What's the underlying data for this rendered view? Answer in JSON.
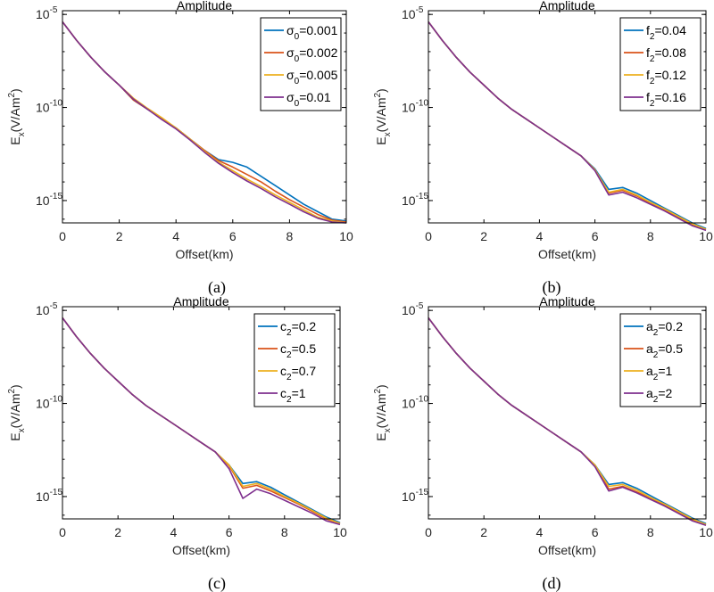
{
  "colors": {
    "s1": "#0072bd",
    "s2": "#d95319",
    "s3": "#edb120",
    "s4": "#7e2f8e"
  },
  "chart_data": [
    {
      "panel": "a",
      "caption": "(a)",
      "type": "line",
      "title": "Amplitude",
      "xlabel": "Offset(km)",
      "ylabel": "E_x(V/Am^2)",
      "yscale": "log",
      "xlim": [
        0,
        10
      ],
      "ylim_exp": [
        -16.2,
        -4.8
      ],
      "xticks": [
        "0",
        "2",
        "4",
        "6",
        "8",
        "10"
      ],
      "yticks": [
        {
          "base": "10",
          "exp": "-5",
          "value": -5
        },
        {
          "base": "10",
          "exp": "-10",
          "value": -10
        },
        {
          "base": "10",
          "exp": "-15",
          "value": -15
        }
      ],
      "legend_position": "top-right",
      "legend_symbol": "σ",
      "legend_sub": "0",
      "x": [
        0,
        0.5,
        1,
        1.5,
        2,
        2.5,
        3,
        3.5,
        4,
        4.5,
        5,
        5.5,
        6,
        6.5,
        7,
        7.5,
        8,
        8.5,
        9,
        9.5,
        10
      ],
      "series": [
        {
          "name": "σ0=0.001",
          "legend_value": "=0.001",
          "values": [
            -5.4,
            -6.4,
            -7.3,
            -8.1,
            -8.8,
            -9.6,
            -10.1,
            -10.6,
            -11.1,
            -11.7,
            -12.3,
            -12.8,
            -12.95,
            -13.2,
            -13.7,
            -14.2,
            -14.7,
            -15.2,
            -15.6,
            -16.0,
            -16.1
          ]
        },
        {
          "name": "σ0=0.002",
          "legend_value": "=0.002",
          "values": [
            -5.4,
            -6.4,
            -7.3,
            -8.1,
            -8.8,
            -9.6,
            -10.1,
            -10.6,
            -11.1,
            -11.7,
            -12.3,
            -12.85,
            -13.2,
            -13.6,
            -14.0,
            -14.5,
            -14.95,
            -15.35,
            -15.75,
            -16.05,
            -16.15
          ]
        },
        {
          "name": "σ0=0.005",
          "legend_value": "=0.005",
          "values": [
            -5.4,
            -6.4,
            -7.3,
            -8.1,
            -8.8,
            -9.5,
            -10.05,
            -10.55,
            -11.1,
            -11.7,
            -12.35,
            -12.95,
            -13.4,
            -13.85,
            -14.25,
            -14.7,
            -15.1,
            -15.5,
            -15.9,
            -16.1,
            -16.2
          ]
        },
        {
          "name": "σ0=0.01",
          "legend_value": "=0.01",
          "values": [
            -5.4,
            -6.4,
            -7.3,
            -8.1,
            -8.8,
            -9.55,
            -10.1,
            -10.65,
            -11.15,
            -11.75,
            -12.4,
            -13.0,
            -13.5,
            -13.95,
            -14.35,
            -14.8,
            -15.2,
            -15.6,
            -15.95,
            -16.15,
            -16.2
          ]
        }
      ]
    },
    {
      "panel": "b",
      "caption": "(b)",
      "type": "line",
      "title": "Amplitude",
      "xlabel": "Offset(km)",
      "ylabel": "E_x(V/Am^2)",
      "yscale": "log",
      "xlim": [
        0,
        10
      ],
      "ylim_exp": [
        -16.2,
        -4.8
      ],
      "xticks": [
        "0",
        "2",
        "4",
        "6",
        "8",
        "10"
      ],
      "yticks": [
        {
          "base": "10",
          "exp": "-5",
          "value": -5
        },
        {
          "base": "10",
          "exp": "-10",
          "value": -10
        },
        {
          "base": "10",
          "exp": "-15",
          "value": -15
        }
      ],
      "legend_position": "top-right",
      "legend_symbol": "f",
      "legend_sub": "2",
      "x": [
        0,
        0.5,
        1,
        1.5,
        2,
        2.5,
        3,
        3.5,
        4,
        4.5,
        5,
        5.5,
        6,
        6.5,
        7,
        7.5,
        8,
        8.5,
        9,
        9.5,
        10
      ],
      "series": [
        {
          "name": "f2=0.04",
          "legend_value": "=0.04",
          "values": [
            -5.4,
            -6.4,
            -7.3,
            -8.1,
            -8.8,
            -9.5,
            -10.1,
            -10.6,
            -11.1,
            -11.6,
            -12.1,
            -12.6,
            -13.3,
            -14.4,
            -14.3,
            -14.6,
            -15.0,
            -15.4,
            -15.8,
            -16.2,
            -16.5
          ]
        },
        {
          "name": "f2=0.08",
          "legend_value": "=0.08",
          "values": [
            -5.4,
            -6.4,
            -7.3,
            -8.1,
            -8.8,
            -9.5,
            -10.1,
            -10.6,
            -11.1,
            -11.6,
            -12.1,
            -12.6,
            -13.35,
            -14.6,
            -14.45,
            -14.75,
            -15.15,
            -15.5,
            -15.9,
            -16.3,
            -16.55
          ]
        },
        {
          "name": "f2=0.12",
          "legend_value": "=0.12",
          "values": [
            -5.4,
            -6.4,
            -7.3,
            -8.1,
            -8.8,
            -9.5,
            -10.1,
            -10.6,
            -11.1,
            -11.6,
            -12.1,
            -12.6,
            -13.35,
            -14.55,
            -14.4,
            -14.7,
            -15.1,
            -15.45,
            -15.85,
            -16.25,
            -16.55
          ]
        },
        {
          "name": "f2=0.16",
          "legend_value": "=0.16",
          "values": [
            -5.4,
            -6.4,
            -7.3,
            -8.1,
            -8.8,
            -9.5,
            -10.1,
            -10.6,
            -11.1,
            -11.6,
            -12.1,
            -12.6,
            -13.4,
            -14.7,
            -14.55,
            -14.85,
            -15.2,
            -15.55,
            -15.95,
            -16.35,
            -16.6
          ]
        }
      ]
    },
    {
      "panel": "c",
      "caption": "(c)",
      "type": "line",
      "title": "Amplitude",
      "xlabel": "Offset(km)",
      "ylabel": "E_x(V/Am^2)",
      "yscale": "log",
      "xlim": [
        0,
        10
      ],
      "ylim_exp": [
        -16.2,
        -4.8
      ],
      "xticks": [
        "0",
        "2",
        "4",
        "6",
        "8",
        "10"
      ],
      "yticks": [
        {
          "base": "10",
          "exp": "-5",
          "value": -5
        },
        {
          "base": "10",
          "exp": "-10",
          "value": -10
        },
        {
          "base": "10",
          "exp": "-15",
          "value": -15
        }
      ],
      "legend_position": "top-right",
      "legend_symbol": "c",
      "legend_sub": "2",
      "x": [
        0,
        0.5,
        1,
        1.5,
        2,
        2.5,
        3,
        3.5,
        4,
        4.5,
        5,
        5.5,
        6,
        6.5,
        7,
        7.5,
        8,
        8.5,
        9,
        9.5,
        10
      ],
      "series": [
        {
          "name": "c2=0.2",
          "legend_value": "=0.2",
          "values": [
            -5.4,
            -6.4,
            -7.3,
            -8.1,
            -8.8,
            -9.5,
            -10.1,
            -10.6,
            -11.1,
            -11.6,
            -12.1,
            -12.6,
            -13.3,
            -14.3,
            -14.2,
            -14.5,
            -14.9,
            -15.3,
            -15.7,
            -16.1,
            -16.4
          ]
        },
        {
          "name": "c2=0.5",
          "legend_value": "=0.5",
          "values": [
            -5.4,
            -6.4,
            -7.3,
            -8.1,
            -8.8,
            -9.5,
            -10.1,
            -10.6,
            -11.1,
            -11.6,
            -12.1,
            -12.6,
            -13.35,
            -14.55,
            -14.4,
            -14.7,
            -15.05,
            -15.4,
            -15.8,
            -16.2,
            -16.45
          ]
        },
        {
          "name": "c2=0.7",
          "legend_value": "=0.7",
          "values": [
            -5.4,
            -6.4,
            -7.3,
            -8.1,
            -8.8,
            -9.5,
            -10.1,
            -10.6,
            -11.1,
            -11.6,
            -12.1,
            -12.6,
            -13.3,
            -14.45,
            -14.3,
            -14.6,
            -15.0,
            -15.35,
            -15.75,
            -16.15,
            -16.45
          ]
        },
        {
          "name": "c2=1",
          "legend_value": "=1",
          "values": [
            -5.4,
            -6.4,
            -7.3,
            -8.1,
            -8.8,
            -9.5,
            -10.1,
            -10.6,
            -11.1,
            -11.6,
            -12.1,
            -12.6,
            -13.5,
            -15.1,
            -14.6,
            -14.85,
            -15.2,
            -15.55,
            -15.9,
            -16.3,
            -16.5
          ]
        }
      ]
    },
    {
      "panel": "d",
      "caption": "(d)",
      "type": "line",
      "title": "Amplitude",
      "xlabel": "Offset(km)",
      "ylabel": "E_x(V/Am^2)",
      "yscale": "log",
      "xlim": [
        0,
        10
      ],
      "ylim_exp": [
        -16.2,
        -4.8
      ],
      "xticks": [
        "0",
        "2",
        "4",
        "6",
        "8",
        "10"
      ],
      "yticks": [
        {
          "base": "10",
          "exp": "-5",
          "value": -5
        },
        {
          "base": "10",
          "exp": "-10",
          "value": -10
        },
        {
          "base": "10",
          "exp": "-15",
          "value": -15
        }
      ],
      "legend_position": "top-right",
      "legend_symbol": "a",
      "legend_sub": "2",
      "x": [
        0,
        0.5,
        1,
        1.5,
        2,
        2.5,
        3,
        3.5,
        4,
        4.5,
        5,
        5.5,
        6,
        6.5,
        7,
        7.5,
        8,
        8.5,
        9,
        9.5,
        10
      ],
      "series": [
        {
          "name": "a2=0.2",
          "legend_value": "=0.2",
          "values": [
            -5.4,
            -6.4,
            -7.3,
            -8.1,
            -8.8,
            -9.5,
            -10.1,
            -10.6,
            -11.1,
            -11.6,
            -12.1,
            -12.6,
            -13.3,
            -14.35,
            -14.25,
            -14.55,
            -14.95,
            -15.35,
            -15.75,
            -16.15,
            -16.45
          ]
        },
        {
          "name": "a2=0.5",
          "legend_value": "=0.5",
          "values": [
            -5.4,
            -6.4,
            -7.3,
            -8.1,
            -8.8,
            -9.5,
            -10.1,
            -10.6,
            -11.1,
            -11.6,
            -12.1,
            -12.6,
            -13.35,
            -14.6,
            -14.45,
            -14.75,
            -15.1,
            -15.45,
            -15.85,
            -16.25,
            -16.5
          ]
        },
        {
          "name": "a2=1",
          "legend_value": "=1",
          "values": [
            -5.4,
            -6.4,
            -7.3,
            -8.1,
            -8.8,
            -9.5,
            -10.1,
            -10.6,
            -11.1,
            -11.6,
            -12.1,
            -12.6,
            -13.3,
            -14.45,
            -14.35,
            -14.65,
            -15.05,
            -15.4,
            -15.8,
            -16.2,
            -16.5
          ]
        },
        {
          "name": "a2=2",
          "legend_value": "=2",
          "values": [
            -5.4,
            -6.4,
            -7.3,
            -8.1,
            -8.8,
            -9.5,
            -10.1,
            -10.6,
            -11.1,
            -11.6,
            -12.1,
            -12.6,
            -13.4,
            -14.7,
            -14.5,
            -14.8,
            -15.15,
            -15.5,
            -15.9,
            -16.3,
            -16.55
          ]
        }
      ]
    }
  ]
}
